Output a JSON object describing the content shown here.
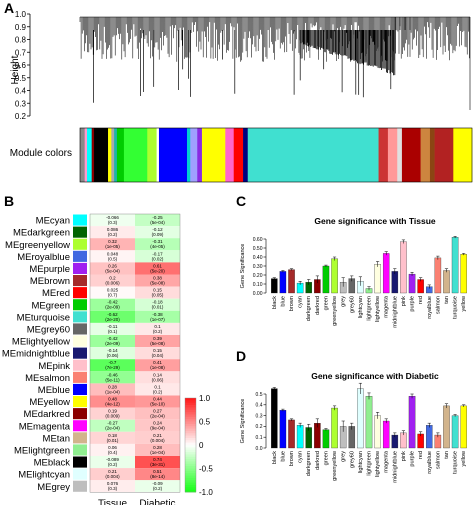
{
  "panels": {
    "a": "A",
    "b": "B",
    "c": "C",
    "d": "D"
  },
  "dendrogram": {
    "ylabel": "Height",
    "ticks": [
      "1.0",
      "0.9",
      "0.8",
      "0.7",
      "0.6",
      "0.5",
      "0.4",
      "0.3",
      "0.2"
    ],
    "module_label": "Module colors"
  },
  "module_bar": [
    {
      "c": "#888888",
      "w": 1
    },
    {
      "c": "#ff99cc",
      "w": 0.5
    },
    {
      "c": "#00ffff",
      "w": 1
    },
    {
      "c": "#8b0000",
      "w": 0.5
    },
    {
      "c": "#000000",
      "w": 3
    },
    {
      "c": "#ffff00",
      "w": 0.7
    },
    {
      "c": "#aaaaaa",
      "w": 0.6
    },
    {
      "c": "#20b2aa",
      "w": 0.6
    },
    {
      "c": "#00cc00",
      "w": 1.5
    },
    {
      "c": "#33ff33",
      "w": 5
    },
    {
      "c": "#adff2f",
      "w": 2
    },
    {
      "c": "#ffffff",
      "w": 0.5
    },
    {
      "c": "#0000ff",
      "w": 6
    },
    {
      "c": "#00ced1",
      "w": 0.7
    },
    {
      "c": "#a0a0ff",
      "w": 1.5
    },
    {
      "c": "#8a2be2",
      "w": 1
    },
    {
      "c": "#ffff00",
      "w": 5
    },
    {
      "c": "#ff66cc",
      "w": 1.8
    },
    {
      "c": "#ff0000",
      "w": 2
    },
    {
      "c": "#000080",
      "w": 1
    },
    {
      "c": "#40e0d0",
      "w": 28
    },
    {
      "c": "#cc3333",
      "w": 2
    },
    {
      "c": "#ff9999",
      "w": 2
    },
    {
      "c": "#e0e0e0",
      "w": 1
    },
    {
      "c": "#aa0000",
      "w": 4
    },
    {
      "c": "#cd853f",
      "w": 2
    },
    {
      "c": "#8b4513",
      "w": 1
    },
    {
      "c": "#b22222",
      "w": 4
    },
    {
      "c": "#ffff00",
      "w": 4
    }
  ],
  "heatmap": {
    "modules": [
      "MEcyan",
      "MEdarkgreen",
      "MEgreenyellow",
      "MEroyalblue",
      "MEpurple",
      "MEbrown",
      "MEred",
      "MEgreen",
      "MEturquoise",
      "MEgrey60",
      "MElightyellow",
      "MEmidnightblue",
      "MEpink",
      "MEsalmon",
      "MEblue",
      "MEyellow",
      "MEdarkred",
      "MEmagenta",
      "MEtan",
      "MElightgreen",
      "MEblack",
      "MElightcyan",
      "MEgrey"
    ],
    "module_colors": [
      "#00ffff",
      "#006400",
      "#adff2f",
      "#4169e1",
      "#a020f0",
      "#a52a2a",
      "#ff0000",
      "#00cc00",
      "#40e0d0",
      "#666666",
      "#ffffe0",
      "#191970",
      "#ffc0cb",
      "#fa8072",
      "#0000ff",
      "#ffff00",
      "#8b0000",
      "#ff00ff",
      "#d2b48c",
      "#90ee90",
      "#000000",
      "#e0ffff",
      "#bebebe"
    ],
    "columns": [
      "Tissue",
      "Diabetic"
    ],
    "cells": [
      [
        {
          "v": "-0.066",
          "p": "(0.3)",
          "r": -0.066
        },
        {
          "v": "-0.25",
          "p": "(5e-04)",
          "r": -0.25
        }
      ],
      [
        {
          "v": "0.086",
          "p": "(0.2)",
          "r": 0.086
        },
        {
          "v": "-0.12",
          "p": "(0.09)",
          "r": -0.12
        }
      ],
      [
        {
          "v": "0.32",
          "p": "(1e-05)",
          "r": 0.32
        },
        {
          "v": "-0.31",
          "p": "(4e-05)",
          "r": -0.31
        }
      ],
      [
        {
          "v": "0.048",
          "p": "(0.5)",
          "r": 0.048
        },
        {
          "v": "-0.17",
          "p": "(0.02)",
          "r": -0.17
        }
      ],
      [
        {
          "v": "0.26",
          "p": "(5e-04)",
          "r": 0.26
        },
        {
          "v": "0.61",
          "p": "(5e-20)",
          "r": 0.61
        }
      ],
      [
        {
          "v": "0.2",
          "p": "(0.006)",
          "r": 0.2
        },
        {
          "v": "0.38",
          "p": "(5e-08)",
          "r": 0.38
        }
      ],
      [
        {
          "v": "0.025",
          "p": "(0.7)",
          "r": 0.025
        },
        {
          "v": "0.15",
          "p": "(0.05)",
          "r": 0.15
        }
      ],
      [
        {
          "v": "-0.42",
          "p": "(2e-09)",
          "r": -0.42
        },
        {
          "v": "-0.18",
          "p": "(0.01)",
          "r": -0.18
        }
      ],
      [
        {
          "v": "-0.62",
          "p": "(2e-20)",
          "r": -0.62
        },
        {
          "v": "-0.38",
          "p": "(1e-07)",
          "r": -0.38
        }
      ],
      [
        {
          "v": "-0.11",
          "p": "(0.1)",
          "r": -0.11
        },
        {
          "v": "0.1",
          "p": "(0.2)",
          "r": 0.1
        }
      ],
      [
        {
          "v": "-0.42",
          "p": "(2e-09)",
          "r": -0.42
        },
        {
          "v": "0.39",
          "p": "(5e-08)",
          "r": 0.39
        }
      ],
      [
        {
          "v": "-0.14",
          "p": "(0.06)",
          "r": -0.14
        },
        {
          "v": "0.15",
          "p": "(0.04)",
          "r": 0.15
        }
      ],
      [
        {
          "v": "-0.7",
          "p": "(7e-29)",
          "r": -0.7
        },
        {
          "v": "0.41",
          "p": "(1e-08)",
          "r": 0.41
        }
      ],
      [
        {
          "v": "-0.46",
          "p": "(5e-11)",
          "r": -0.46
        },
        {
          "v": "0.14",
          "p": "(0.06)",
          "r": 0.14
        }
      ],
      [
        {
          "v": "0.28",
          "p": "(1e-04)",
          "r": 0.28
        },
        {
          "v": "0.1",
          "p": "(0.2)",
          "r": 0.1
        }
      ],
      [
        {
          "v": "0.48",
          "p": "(4e-12)",
          "r": 0.48
        },
        {
          "v": "0.44",
          "p": "(5e-10)",
          "r": 0.44
        }
      ],
      [
        {
          "v": "0.19",
          "p": "(0.009)",
          "r": 0.19
        },
        {
          "v": "0.27",
          "p": "(2e-04)",
          "r": 0.27
        }
      ],
      [
        {
          "v": "-0.27",
          "p": "(2e-04)",
          "r": -0.27
        },
        {
          "v": "0.24",
          "p": "(9e-04)",
          "r": 0.24
        }
      ],
      [
        {
          "v": "0.18",
          "p": "(0.01)",
          "r": 0.18
        },
        {
          "v": "0.21",
          "p": "(0.004)",
          "r": 0.21
        }
      ],
      [
        {
          "v": "0.06",
          "p": "(0.4)",
          "r": 0.06
        },
        {
          "v": "0.28",
          "p": "(1e-04)",
          "r": 0.28
        }
      ],
      [
        {
          "v": "-0.089",
          "p": "(0.2)",
          "r": -0.089
        },
        {
          "v": "0.74",
          "p": "(3e-31)",
          "r": 0.74
        }
      ],
      [
        {
          "v": "0.21",
          "p": "(0.004)",
          "r": 0.21
        },
        {
          "v": "0.51",
          "p": "(8e-14)",
          "r": 0.51
        }
      ],
      [
        {
          "v": "0.076",
          "p": "(0.3)",
          "r": 0.076
        },
        {
          "v": "-0.09",
          "p": "(0.2)",
          "r": -0.09
        }
      ]
    ],
    "legend_ticks": [
      "1.0",
      "0.5",
      "0",
      "-0.5",
      "-1.0"
    ]
  },
  "chart_data": [
    {
      "type": "bar",
      "title": "Gene significance with Tissue",
      "ylabel": "Gene Significance",
      "ylim": [
        0,
        0.6
      ],
      "yticks": [
        "0.00",
        "0.10",
        "0.20",
        "0.30",
        "0.40",
        "0.50",
        "0.60"
      ],
      "categories": [
        "black",
        "blue",
        "brown",
        "cyan",
        "darkgreen",
        "darkred",
        "green",
        "greenyellow",
        "grey",
        "grey60",
        "lightcyan",
        "lightgreen",
        "lightyellow",
        "magenta",
        "midnightblue",
        "pink",
        "purple",
        "red",
        "royalblue",
        "salmon",
        "tan",
        "turquoise",
        "yellow"
      ],
      "colors": [
        "#000000",
        "#0000ff",
        "#a52a2a",
        "#00ffff",
        "#006400",
        "#8b0000",
        "#00cc00",
        "#adff2f",
        "#bebebe",
        "#666666",
        "#e0ffff",
        "#90ee90",
        "#ffffe0",
        "#ff00ff",
        "#191970",
        "#ffc0cb",
        "#a020f0",
        "#ff0000",
        "#4169e1",
        "#fa8072",
        "#d2b48c",
        "#40e0d0",
        "#ffff00"
      ],
      "values": [
        0.16,
        0.24,
        0.26,
        0.11,
        0.12,
        0.15,
        0.3,
        0.38,
        0.12,
        0.16,
        0.13,
        0.05,
        0.32,
        0.44,
        0.24,
        0.57,
        0.21,
        0.15,
        0.07,
        0.39,
        0.25,
        0.62,
        0.43
      ],
      "errors": [
        0.01,
        0.01,
        0.01,
        0.02,
        0.03,
        0.04,
        0.01,
        0.02,
        0.05,
        0.03,
        0.05,
        0.02,
        0.03,
        0.02,
        0.03,
        0.02,
        0.02,
        0.02,
        0.02,
        0.02,
        0.02,
        0.01,
        0.01
      ]
    },
    {
      "type": "bar",
      "title": "Gene significance with Diabetic",
      "ylabel": "Gene Significance",
      "ylim": [
        0,
        0.5
      ],
      "yticks": [
        "0.0",
        "0.1",
        "0.2",
        "0.3",
        "0.4",
        "0.5"
      ],
      "categories": [
        "black",
        "blue",
        "brown",
        "cyan",
        "darkgreen",
        "darkred",
        "green",
        "greenyellow",
        "grey",
        "grey60",
        "lightcyan",
        "lightgreen",
        "lightyellow",
        "magenta",
        "midnightblue",
        "pink",
        "purple",
        "red",
        "royalblue",
        "salmon",
        "tan",
        "turquoise",
        "yellow"
      ],
      "colors": [
        "#000000",
        "#0000ff",
        "#a52a2a",
        "#00ffff",
        "#006400",
        "#8b0000",
        "#00cc00",
        "#adff2f",
        "#bebebe",
        "#666666",
        "#e0ffff",
        "#90ee90",
        "#ffffe0",
        "#ff00ff",
        "#191970",
        "#ffc0cb",
        "#a020f0",
        "#ff0000",
        "#4169e1",
        "#fa8072",
        "#d2b48c",
        "#40e0d0",
        "#ffff00"
      ],
      "values": [
        0.55,
        0.35,
        0.26,
        0.21,
        0.19,
        0.23,
        0.17,
        0.37,
        0.2,
        0.2,
        0.55,
        0.48,
        0.3,
        0.25,
        0.12,
        0.14,
        0.48,
        0.13,
        0.21,
        0.12,
        0.39,
        0.3,
        0.39
      ],
      "errors": [
        0.01,
        0.01,
        0.01,
        0.02,
        0.03,
        0.04,
        0.01,
        0.02,
        0.05,
        0.03,
        0.05,
        0.03,
        0.03,
        0.02,
        0.02,
        0.02,
        0.02,
        0.02,
        0.02,
        0.02,
        0.02,
        0.01,
        0.01
      ]
    }
  ]
}
